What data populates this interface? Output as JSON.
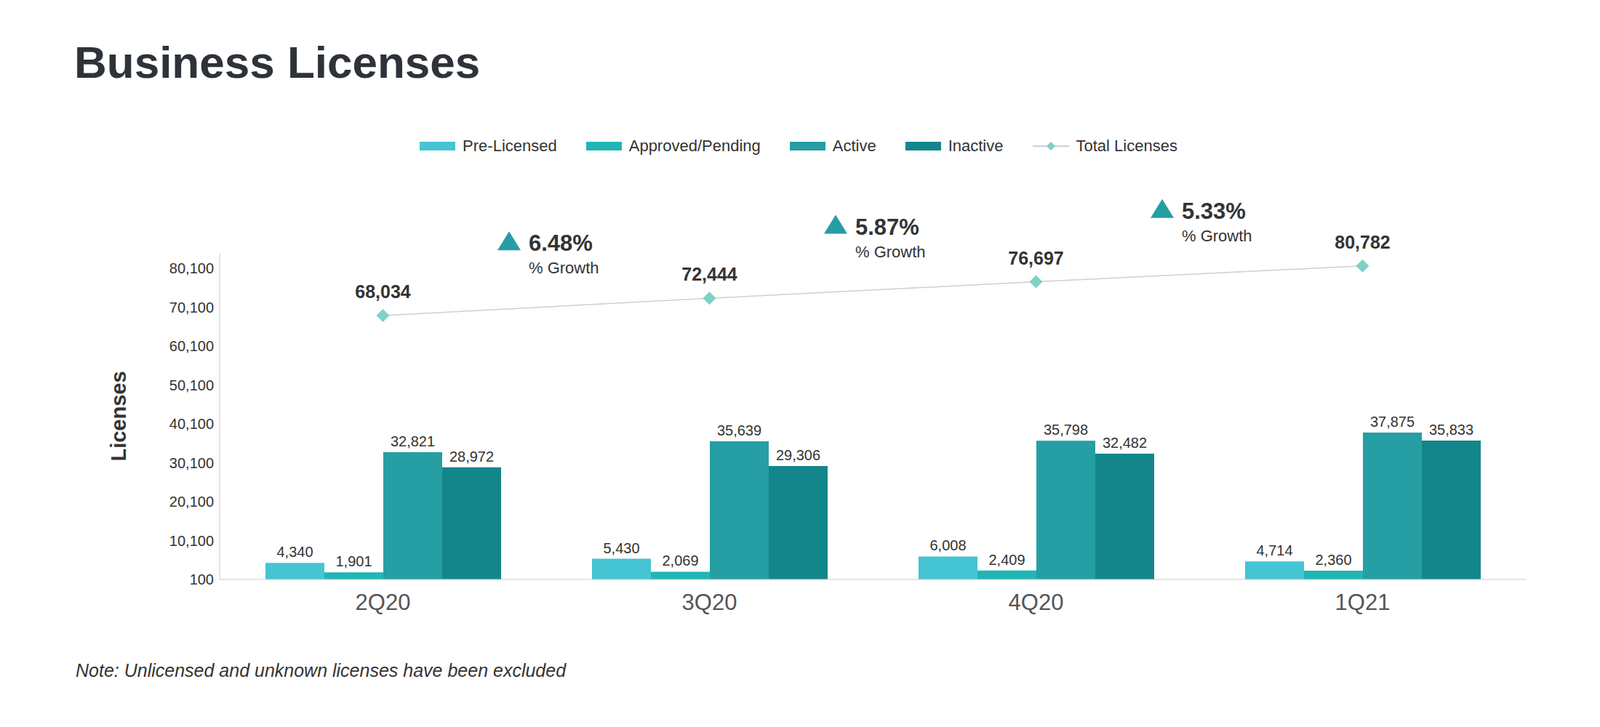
{
  "chart_data": {
    "type": "bar",
    "title": "Business Licenses",
    "y_label": "Licenses",
    "note": "Note: Unlicensed and unknown licenses have been excluded",
    "categories": [
      "2Q20",
      "3Q20",
      "4Q20",
      "1Q21"
    ],
    "ylim": [
      100,
      84100
    ],
    "yticks": [
      100,
      {
        "value": 10100,
        "label": "10,100"
      },
      {
        "value": 20100,
        "label": "20,100"
      },
      {
        "value": 30100,
        "label": "30,100"
      },
      {
        "value": 40100,
        "label": "40,100"
      },
      {
        "value": 50100,
        "label": "50,100"
      },
      {
        "value": 60100,
        "label": "60,100"
      },
      {
        "value": 70100,
        "label": "70,100"
      },
      {
        "value": 80100,
        "label": "80,100"
      }
    ],
    "grid": false,
    "data_labels": true,
    "series": [
      {
        "name": "Pre-Licensed",
        "color": "#45c4d3",
        "values": [
          4340,
          5430,
          6008,
          4714
        ],
        "value_labels": [
          "4,340",
          "5,430",
          "6,008",
          "4,714"
        ]
      },
      {
        "name": "Approved/Pending",
        "color": "#20b6b4",
        "values": [
          1901,
          2069,
          2409,
          2360
        ],
        "value_labels": [
          "1,901",
          "2,069",
          "2,409",
          "2,360"
        ]
      },
      {
        "name": "Active",
        "color": "#259ea4",
        "values": [
          32821,
          35639,
          35798,
          37875
        ],
        "value_labels": [
          "32,821",
          "35,639",
          "35,798",
          "37,875"
        ]
      },
      {
        "name": "Inactive",
        "color": "#13868b",
        "values": [
          28972,
          29306,
          32482,
          35833
        ],
        "value_labels": [
          "28,972",
          "29,306",
          "32,482",
          "35,833"
        ]
      },
      {
        "name": "Total Licenses",
        "type": "line",
        "marker": "diamond",
        "color": "#7fd0c7",
        "values": [
          68034,
          72444,
          76697,
          80782
        ],
        "value_labels": [
          "68,034",
          "72,444",
          "76,697",
          "80,782"
        ]
      }
    ],
    "annotations": [
      {
        "text": "6.48%",
        "label": "% Growth"
      },
      {
        "text": "5.87%",
        "label": "% Growth"
      },
      {
        "text": "5.33%",
        "label": "% Growth"
      }
    ]
  }
}
